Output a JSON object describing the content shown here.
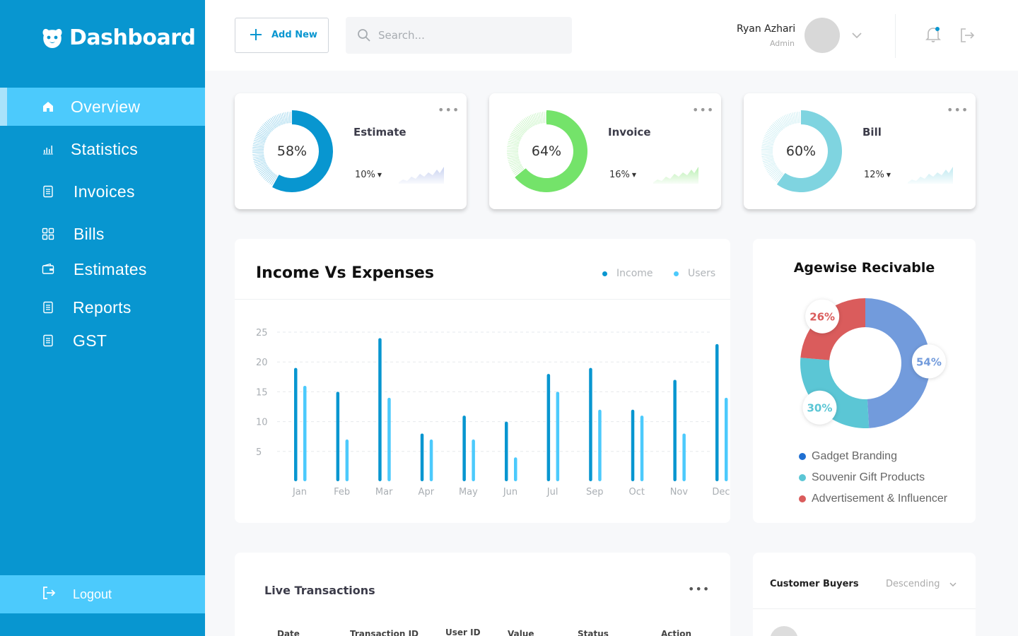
{
  "brand": {
    "name": "Dashboard"
  },
  "sidebar": {
    "items": [
      {
        "label": "Overview",
        "icon": "home-icon",
        "active": true
      },
      {
        "label": "Statistics",
        "icon": "bar-chart-icon"
      },
      {
        "label": "Invoices",
        "icon": "document-icon"
      },
      {
        "label": "Bills",
        "icon": "grid-icon"
      },
      {
        "label": "Estimates",
        "icon": "wallet-icon"
      },
      {
        "label": "Reports",
        "icon": "document-icon"
      },
      {
        "label": "GST",
        "icon": "document-icon"
      }
    ],
    "logout_label": "Logout"
  },
  "header": {
    "add_new_label": "Add New",
    "search_placeholder": "Search...",
    "user_name": "Ryan Azhari",
    "user_role": "Admin"
  },
  "stats": [
    {
      "title": "Estimate",
      "percent": "58%",
      "value": 0.58,
      "change": "10%",
      "color": "#0896d0",
      "spark_color": "#c8d2f0"
    },
    {
      "title": "Invoice",
      "percent": "64%",
      "value": 0.64,
      "change": "16%",
      "color": "#74e36a",
      "spark_color": "#b9efb1"
    },
    {
      "title": "Bill",
      "percent": "60%",
      "value": 0.6,
      "change": "12%",
      "color": "#7fd4e0",
      "spark_color": "#bfe9f0"
    }
  ],
  "income_chart": {
    "title": "Income Vs Expenses",
    "legend": [
      {
        "name": "Income",
        "color": "#0896d0"
      },
      {
        "name": "Users",
        "color": "#4ccafc"
      }
    ]
  },
  "chart_data": [
    {
      "type": "bar",
      "title": "Income Vs Expenses",
      "categories": [
        "Jan",
        "Feb",
        "Mar",
        "Apr",
        "May",
        "Jun",
        "Jul",
        "Sep",
        "Oct",
        "Nov",
        "Dec"
      ],
      "series": [
        {
          "name": "Income",
          "values": [
            19,
            15,
            24,
            8,
            11,
            10,
            18,
            19,
            12,
            17,
            23
          ],
          "color": "#0896d0"
        },
        {
          "name": "Users",
          "values": [
            16,
            7,
            14,
            7,
            7,
            4,
            15,
            12,
            11,
            8,
            14
          ],
          "color": "#4ccafc"
        }
      ],
      "y_ticks": [
        5,
        10,
        15,
        20,
        25
      ],
      "ylim": [
        0,
        25
      ],
      "grid": true,
      "legend_position": "top-right"
    },
    {
      "type": "pie",
      "title": "Agewise Recivable",
      "slices": [
        {
          "name": "Gadget Branding",
          "value": 54,
          "label": "54%",
          "color": "#729bdc"
        },
        {
          "name": "Souvenir Gift Products",
          "value": 30,
          "label": "30%",
          "color": "#5bc6d5"
        },
        {
          "name": "Advertisement & Influencer",
          "value": 26,
          "label": "26%",
          "color": "#da5c5c"
        }
      ]
    }
  ],
  "agewise": {
    "title": "Agewise Recivable"
  },
  "transactions": {
    "title": "Live Transactions",
    "columns": [
      "Date",
      "Transaction ID",
      "User ID",
      "Value",
      "Status",
      "Action"
    ]
  },
  "customers": {
    "title": "Customer Buyers",
    "sort_label": "Descending"
  }
}
